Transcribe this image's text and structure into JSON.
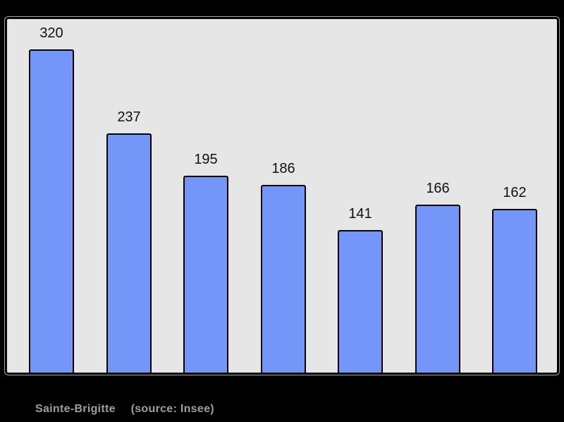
{
  "page": {
    "background_color": "#000000"
  },
  "chart_data": {
    "type": "bar",
    "categories": [
      "",
      "",
      "",
      "",
      "",
      "",
      ""
    ],
    "values": [
      320,
      237,
      195,
      186,
      141,
      166,
      162
    ],
    "data_labels": [
      "320",
      "237",
      "195",
      "186",
      "141",
      "166",
      "162"
    ],
    "title": "",
    "xlabel": "",
    "ylabel": "",
    "ylim": [
      0,
      350
    ],
    "grid": false,
    "legend": false,
    "bar_color": "#7396f8",
    "bar_border_color": "#000000",
    "plot_background": "#e6e6e6",
    "plot_border_color": "#000000",
    "label_color": "#111111"
  },
  "caption": {
    "commune": "Sainte-Brigitte",
    "source": "(source: Insee)",
    "color": "#9e9e9e"
  }
}
